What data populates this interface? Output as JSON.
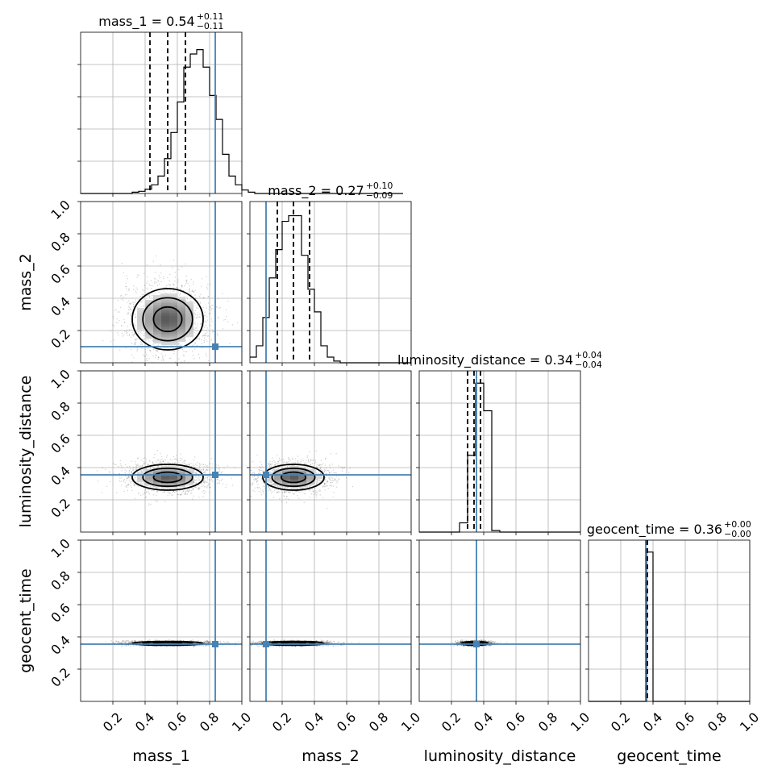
{
  "colors": {
    "truth": "#4682b4",
    "hist": "#000000",
    "grid": "#b0b0b0",
    "spine": "#000000"
  },
  "chart_data": {
    "type": "corner",
    "parameters": [
      "mass_1",
      "mass_2",
      "luminosity_distance",
      "geocent_time"
    ],
    "axis_range": [
      0,
      1
    ],
    "ticks": [
      0.2,
      0.4,
      0.6,
      0.8,
      1.0
    ],
    "tick_labels": [
      "0.2",
      "0.4",
      "0.6",
      "0.8",
      "1.0"
    ],
    "grid": true,
    "truths": [
      0.835,
      0.1,
      0.355,
      0.355
    ],
    "titles": [
      {
        "text": "mass_1 = 0.54",
        "plus": "+0.11",
        "minus": "−0.11"
      },
      {
        "text": "mass_2 = 0.27",
        "plus": "+0.10",
        "minus": "−0.09"
      },
      {
        "text": "luminosity_distance = 0.34",
        "plus": "+0.04",
        "minus": "−0.04"
      },
      {
        "text": "geocent_time = 0.36",
        "plus": "+0.00",
        "minus": "−0.00"
      }
    ],
    "marginals": [
      {
        "bin_width": 0.04,
        "x0": 0,
        "quantiles": [
          0.43,
          0.54,
          0.65
        ],
        "counts": [
          0,
          0,
          0,
          0,
          0,
          0,
          0,
          0,
          3,
          5,
          10,
          20,
          40,
          80,
          140,
          210,
          290,
          320,
          330,
          290,
          225,
          170,
          90,
          40,
          20,
          8,
          3,
          0,
          0,
          0,
          0,
          0,
          0,
          0,
          0,
          0,
          0,
          0,
          0,
          0,
          0,
          0,
          0,
          0,
          0,
          0,
          0,
          0,
          0,
          0
        ],
        "ymax": 370
      },
      {
        "bin_width": 0.04,
        "x0": 0,
        "quantiles": [
          0.17,
          0.27,
          0.37
        ],
        "counts": [
          10,
          30,
          80,
          150,
          200,
          250,
          260,
          260,
          190,
          130,
          90,
          30,
          10,
          3,
          0,
          0,
          0,
          0,
          0,
          0,
          0,
          0,
          0,
          0,
          0
        ],
        "ymax": 285
      },
      {
        "bin_width": 0.05,
        "x0": 0,
        "quantiles": [
          0.3,
          0.34,
          0.38
        ],
        "counts": [
          0,
          0,
          0,
          0,
          0,
          60,
          500,
          970,
          790,
          10,
          0,
          0,
          0,
          0,
          0,
          0,
          0,
          0,
          0,
          0
        ],
        "ymax": 1050
      },
      {
        "bin_width": 0.04,
        "x0": 0,
        "quantiles": [
          0.355,
          0.36,
          0.365
        ],
        "counts": [
          0,
          0,
          0,
          0,
          0,
          0,
          0,
          0,
          0,
          5000,
          0,
          0,
          0,
          0,
          0,
          0,
          0,
          0,
          0,
          0,
          0,
          0,
          0,
          0,
          0
        ],
        "ymax": 5400
      }
    ],
    "blobs": [
      {
        "row": 1,
        "col": 0,
        "cx": 0.54,
        "cy": 0.27,
        "sx": 0.11,
        "sy": 0.095
      },
      {
        "row": 2,
        "col": 0,
        "cx": 0.54,
        "cy": 0.34,
        "sx": 0.11,
        "sy": 0.04
      },
      {
        "row": 2,
        "col": 1,
        "cx": 0.27,
        "cy": 0.34,
        "sx": 0.095,
        "sy": 0.04
      },
      {
        "row": 3,
        "col": 0,
        "cx": 0.54,
        "cy": 0.36,
        "sx": 0.11,
        "sy": 0.006
      },
      {
        "row": 3,
        "col": 1,
        "cx": 0.27,
        "cy": 0.36,
        "sx": 0.095,
        "sy": 0.006
      },
      {
        "row": 3,
        "col": 2,
        "cx": 0.345,
        "cy": 0.36,
        "sx": 0.04,
        "sy": 0.006
      }
    ]
  }
}
